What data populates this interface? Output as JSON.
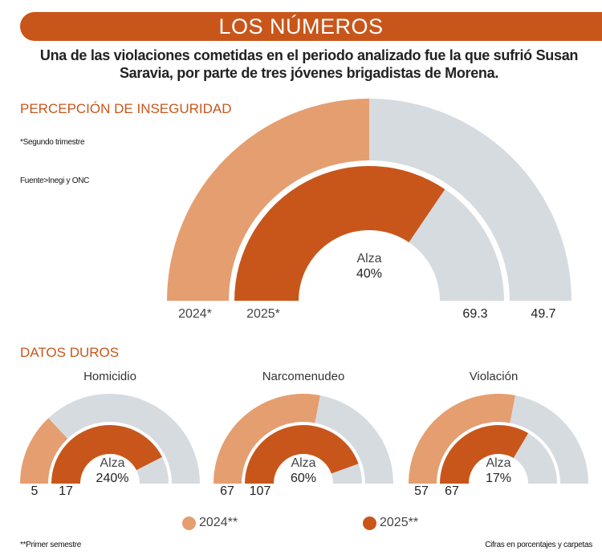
{
  "header": {
    "title": "LOS NÚMEROS",
    "subtitle": "Una de las violaciones cometidas en el periodo analizado fue la que sufrió Susan Saravia, por parte de tres jóvenes brigadistas de Morena."
  },
  "colors": {
    "y2024": "#e59e70",
    "y2025": "#c8561b",
    "track": "#d6dbe0",
    "accent": "#c8561b"
  },
  "chart_data": [
    {
      "type": "gauge",
      "title": "PERCEPCIÓN DE INSEGURIDAD",
      "note": "*Segundo trimestre",
      "source": "Fuente>Inegi y ONC",
      "series": [
        {
          "name": "2024*",
          "value": 49.7,
          "fill": 0.5
        },
        {
          "name": "2025*",
          "value": 69.3,
          "fill": 0.69
        }
      ],
      "change_label": "Alza",
      "change": "40%"
    },
    {
      "type": "gauge",
      "title": "Homicidio",
      "series": [
        {
          "name": "2024**",
          "value": 5,
          "fill": 0.26
        },
        {
          "name": "2025**",
          "value": 17,
          "fill": 0.85
        }
      ],
      "change_label": "Alza",
      "change": "240%"
    },
    {
      "type": "gauge",
      "title": "Narcomenudeo",
      "series": [
        {
          "name": "2024**",
          "value": 67,
          "fill": 0.56
        },
        {
          "name": "2025**",
          "value": 107,
          "fill": 0.89
        }
      ],
      "change_label": "Alza",
      "change": "60%"
    },
    {
      "type": "gauge",
      "title": "Violación",
      "series": [
        {
          "name": "2024**",
          "value": 57,
          "fill": 0.56
        },
        {
          "name": "2025**",
          "value": 67,
          "fill": 0.67
        }
      ],
      "change_label": "Alza",
      "change": "17%"
    }
  ],
  "section2": {
    "title": "DATOS DUROS"
  },
  "legend": [
    "2024**",
    "2025**"
  ],
  "footer": {
    "note": "**Primer semestre",
    "units": "Cifras en porcentajes y carpetas"
  }
}
